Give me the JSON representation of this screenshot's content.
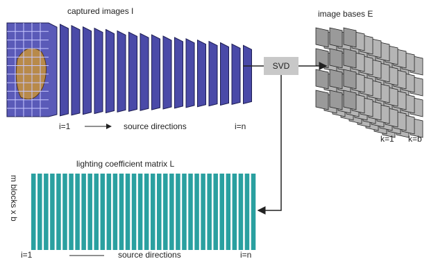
{
  "captured": {
    "title": "captured  images  I",
    "start": "i=1",
    "axis": "source directions",
    "end": "i=n"
  },
  "svd": "SVD",
  "bases": {
    "title": "image bases  E",
    "start": "k=1",
    "end": "k=b"
  },
  "matrix": {
    "title": "lighting coefficient matrix  L",
    "side": "m blocks x b",
    "start": "i=1",
    "axis": "source directions",
    "end": "i=n"
  }
}
